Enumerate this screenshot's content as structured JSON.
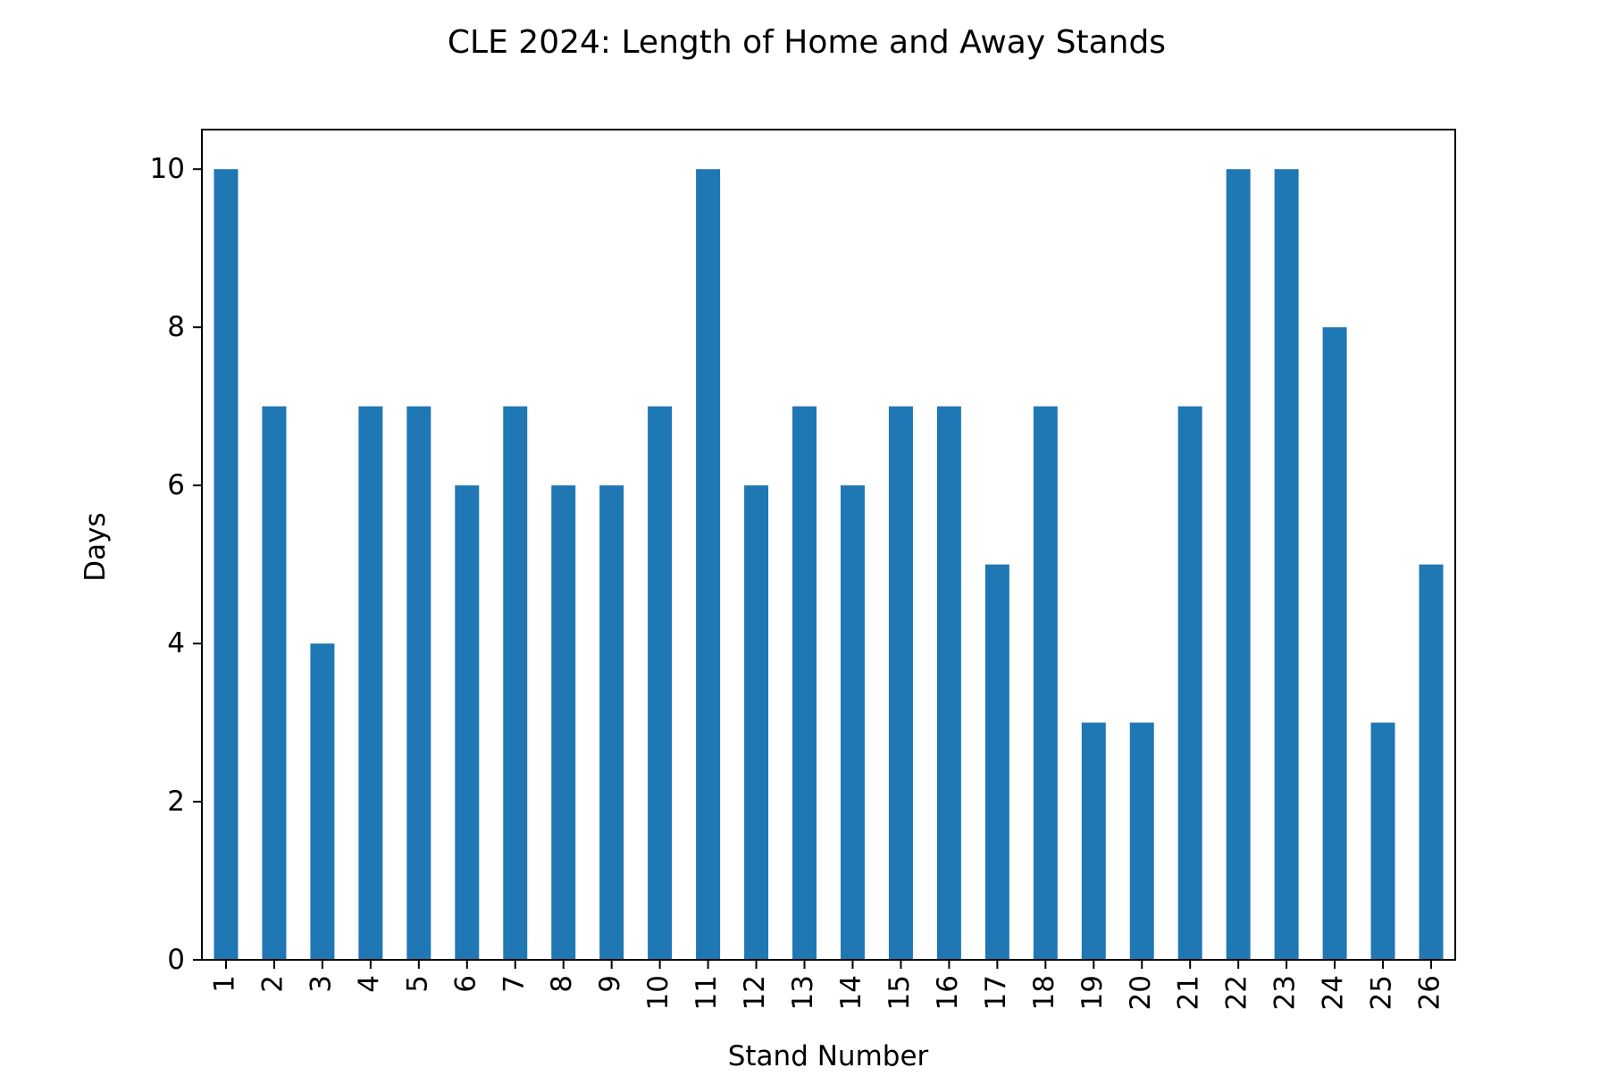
{
  "chart_data": {
    "type": "bar",
    "title": "CLE 2024: Length of Home and Away Stands",
    "xlabel": "Stand Number",
    "ylabel": "Days",
    "categories": [
      "1",
      "2",
      "3",
      "4",
      "5",
      "6",
      "7",
      "8",
      "9",
      "10",
      "11",
      "12",
      "13",
      "14",
      "15",
      "16",
      "17",
      "18",
      "19",
      "20",
      "21",
      "22",
      "23",
      "24",
      "25",
      "26"
    ],
    "values": [
      10,
      7,
      4,
      7,
      7,
      6,
      7,
      6,
      6,
      7,
      10,
      6,
      7,
      6,
      7,
      7,
      5,
      7,
      3,
      3,
      7,
      10,
      10,
      8,
      3,
      5
    ],
    "ylim": [
      0,
      10.5
    ],
    "yticks": [
      0,
      2,
      4,
      6,
      8,
      10
    ],
    "bar_color": "#1f77b4",
    "grid": false,
    "legend": "none"
  }
}
